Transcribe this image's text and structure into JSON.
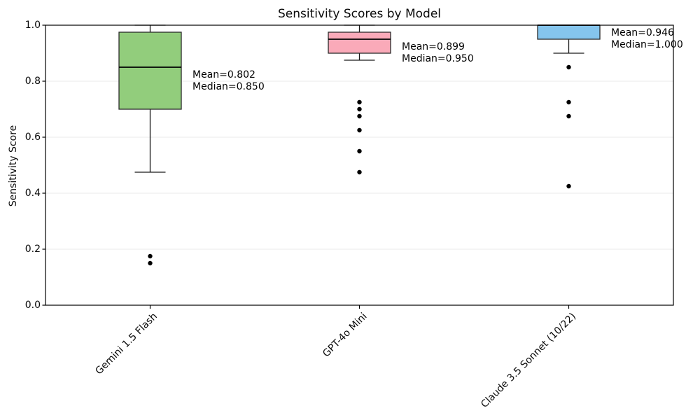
{
  "chart_data": {
    "type": "boxplot",
    "title": "Sensitivity Scores by Model",
    "xlabel": "",
    "ylabel": "Sensitivity Score",
    "ylim": [
      0.0,
      1.0
    ],
    "ytick_labels": [
      "0.0",
      "0.2",
      "0.4",
      "0.6",
      "0.8",
      "1.0"
    ],
    "yticks": [
      0.0,
      0.2,
      0.4,
      0.6,
      0.8,
      1.0
    ],
    "grid": "horizontal-light",
    "legend": "none",
    "categories": [
      "Gemini 1.5 Flash",
      "GPT-4o Mini",
      "Claude 3.5 Sonnet (10/22)"
    ],
    "series": [
      {
        "name": "Gemini 1.5 Flash",
        "box_color": "#92cd7c",
        "whisker_low": 0.475,
        "q1": 0.7,
        "median": 0.85,
        "q3": 0.975,
        "whisker_high": 1.0,
        "mean": 0.802,
        "outliers": [
          0.175,
          0.15
        ],
        "annotation": {
          "line1": "Mean=0.802",
          "line2": "Median=0.850"
        }
      },
      {
        "name": "GPT-4o Mini",
        "box_color": "#faaab9",
        "whisker_low": 0.875,
        "q1": 0.9,
        "median": 0.95,
        "q3": 0.975,
        "whisker_high": 1.0,
        "mean": 0.899,
        "outliers": [
          0.725,
          0.7,
          0.675,
          0.625,
          0.55,
          0.475
        ],
        "annotation": {
          "line1": "Mean=0.899",
          "line2": "Median=0.950"
        }
      },
      {
        "name": "Claude 3.5 Sonnet (10/22)",
        "box_color": "#85c5ed",
        "whisker_low": 0.9,
        "q1": 0.95,
        "median": 1.0,
        "q3": 1.0,
        "whisker_high": 1.0,
        "mean": 0.946,
        "outliers": [
          0.85,
          0.725,
          0.675,
          0.425
        ],
        "annotation": {
          "line1": "Mean=0.946",
          "line2": "Median=1.000"
        }
      }
    ],
    "colors": {
      "box_edge": "#2b2b2b",
      "median_line": "#000000",
      "whisker": "#1a1a1a",
      "outlier": "#000000",
      "grid": "#e8e8e8",
      "spine": "#000000",
      "background": "#ffffff"
    }
  }
}
